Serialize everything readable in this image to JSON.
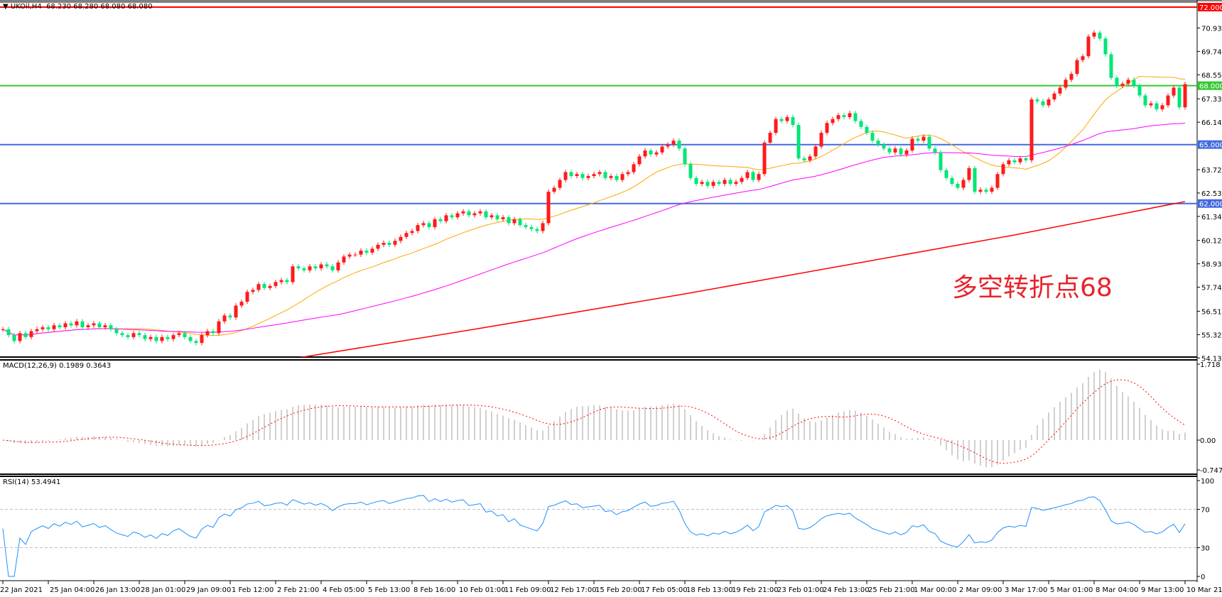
{
  "header": {
    "symbol": "UKOil,H4",
    "ohlc": "68.230 68.280 68.080 68.080"
  },
  "annotation": "多空转折点68",
  "colors": {
    "up": "#ff1a1a",
    "down": "#00e676",
    "ma_fast": "#ffa500",
    "ma_mid": "#ff00ff",
    "ma_long": "#ff0000",
    "macd_hist": "#c0c0c0",
    "macd_signal": "#ff0000",
    "rsi": "#1e90ff"
  },
  "chart_data": {
    "type": "candlestick",
    "symbol": "UKOil",
    "timeframe": "H4",
    "price_axis": {
      "range": [
        54.135,
        72.3
      ],
      "ticks": [
        "70.935",
        "69.745",
        "68.555",
        "67.330",
        "66.140",
        "63.725",
        "62.535",
        "61.345",
        "60.120",
        "58.930",
        "57.740",
        "56.515",
        "55.325",
        "54.135"
      ]
    },
    "horizontal_levels": [
      {
        "value": 72.0,
        "label": "72.000",
        "color": "#ff0000"
      },
      {
        "value": 68.0,
        "label": "68.000",
        "color": "#32c832"
      },
      {
        "value": 65.0,
        "label": "65.000",
        "color": "#4169e1"
      },
      {
        "value": 62.0,
        "label": "62.000",
        "color": "#4169e1"
      }
    ],
    "time_labels": [
      "22 Jan 2021",
      "25 Jan 04:00",
      "26 Jan 13:00",
      "28 Jan 01:00",
      "29 Jan 09:00",
      "1 Feb 12:00",
      "2 Feb 21:00",
      "4 Feb 05:00",
      "5 Feb 13:00",
      "8 Feb 16:00",
      "10 Feb 01:00",
      "11 Feb 09:00",
      "12 Feb 17:00",
      "15 Feb 20:00",
      "17 Feb 05:00",
      "18 Feb 13:00",
      "19 Feb 21:00",
      "23 Feb 01:00",
      "24 Feb 13:00",
      "25 Feb 21:00",
      "1 Mar 00:00",
      "2 Mar 09:00",
      "3 Mar 17:00",
      "5 Mar 01:00",
      "8 Mar 04:00",
      "9 Mar 13:00",
      "10 Mar 21:00"
    ],
    "bars_per_time_label": 8,
    "closes": [
      55.6,
      55.3,
      55.0,
      55.4,
      55.2,
      55.5,
      55.6,
      55.7,
      55.6,
      55.8,
      55.7,
      55.9,
      55.8,
      56.0,
      55.7,
      55.8,
      55.9,
      55.7,
      55.8,
      55.6,
      55.4,
      55.3,
      55.2,
      55.4,
      55.3,
      55.1,
      55.2,
      55.0,
      55.2,
      55.1,
      55.3,
      55.4,
      55.2,
      55.0,
      54.9,
      55.3,
      55.5,
      55.4,
      56.0,
      56.3,
      56.2,
      56.8,
      57.0,
      57.5,
      57.6,
      57.9,
      57.7,
      57.8,
      58.0,
      58.1,
      58.0,
      58.8,
      58.7,
      58.6,
      58.8,
      58.7,
      58.9,
      58.8,
      58.6,
      59.0,
      59.3,
      59.4,
      59.4,
      59.6,
      59.5,
      59.7,
      59.9,
      60.0,
      59.9,
      60.1,
      60.3,
      60.5,
      60.6,
      60.9,
      61.0,
      60.8,
      61.2,
      61.1,
      61.4,
      61.3,
      61.5,
      61.6,
      61.4,
      61.5,
      61.6,
      61.3,
      61.4,
      61.2,
      61.3,
      61.0,
      61.2,
      60.9,
      60.8,
      60.7,
      60.6,
      61.0,
      62.6,
      62.8,
      63.2,
      63.6,
      63.4,
      63.5,
      63.3,
      63.4,
      63.5,
      63.6,
      63.3,
      63.4,
      63.2,
      63.5,
      63.6,
      64.0,
      64.4,
      64.7,
      64.5,
      64.6,
      64.9,
      65.0,
      65.2,
      64.8,
      64.0,
      63.3,
      63.0,
      63.1,
      62.9,
      63.1,
      63.0,
      63.2,
      63.0,
      63.1,
      63.3,
      63.6,
      63.2,
      63.5,
      65.1,
      65.6,
      66.3,
      66.2,
      66.4,
      66.0,
      64.3,
      64.2,
      64.4,
      64.9,
      65.6,
      66.1,
      66.3,
      66.5,
      66.4,
      66.6,
      66.2,
      65.9,
      65.6,
      65.2,
      65.0,
      64.8,
      64.6,
      64.8,
      64.5,
      64.7,
      65.3,
      65.2,
      65.4,
      64.8,
      64.6,
      63.7,
      63.3,
      63.0,
      62.8,
      63.2,
      63.8,
      62.6,
      62.7,
      62.6,
      62.8,
      63.5,
      64.0,
      64.2,
      64.1,
      64.3,
      64.2,
      67.3,
      67.2,
      67.0,
      67.3,
      67.6,
      67.9,
      68.3,
      68.6,
      69.3,
      69.5,
      70.5,
      70.7,
      70.4,
      69.6,
      68.4,
      68.0,
      68.1,
      68.3,
      68.0,
      67.5,
      67.0,
      67.1,
      66.8,
      67.0,
      67.5,
      67.9,
      66.9,
      68.08
    ],
    "moving_averages": [
      {
        "type": "SMA",
        "period": 20,
        "color": "#ffa500"
      },
      {
        "type": "SMA",
        "period": 60,
        "color": "#ff00ff"
      },
      {
        "type": "long",
        "color": "#ff0000",
        "points": [
          [
            51,
            54.1
          ],
          [
            83,
            55.6
          ],
          [
            120,
            57.4
          ],
          [
            151,
            59.0
          ],
          [
            178,
            60.4
          ],
          [
            208,
            62.1
          ]
        ]
      }
    ],
    "macd": {
      "label": "MACD(12,26,9) 0.1989 0.3643",
      "range": [
        -0.7475,
        1.718
      ],
      "ticks": [
        "1.718",
        "0.00",
        "-0.7475"
      ]
    },
    "rsi": {
      "label": "RSI(14) 53.4941",
      "range": [
        0,
        100
      ],
      "levels": [
        30,
        70
      ],
      "ticks": [
        "100",
        "70",
        "30",
        "0"
      ]
    }
  }
}
